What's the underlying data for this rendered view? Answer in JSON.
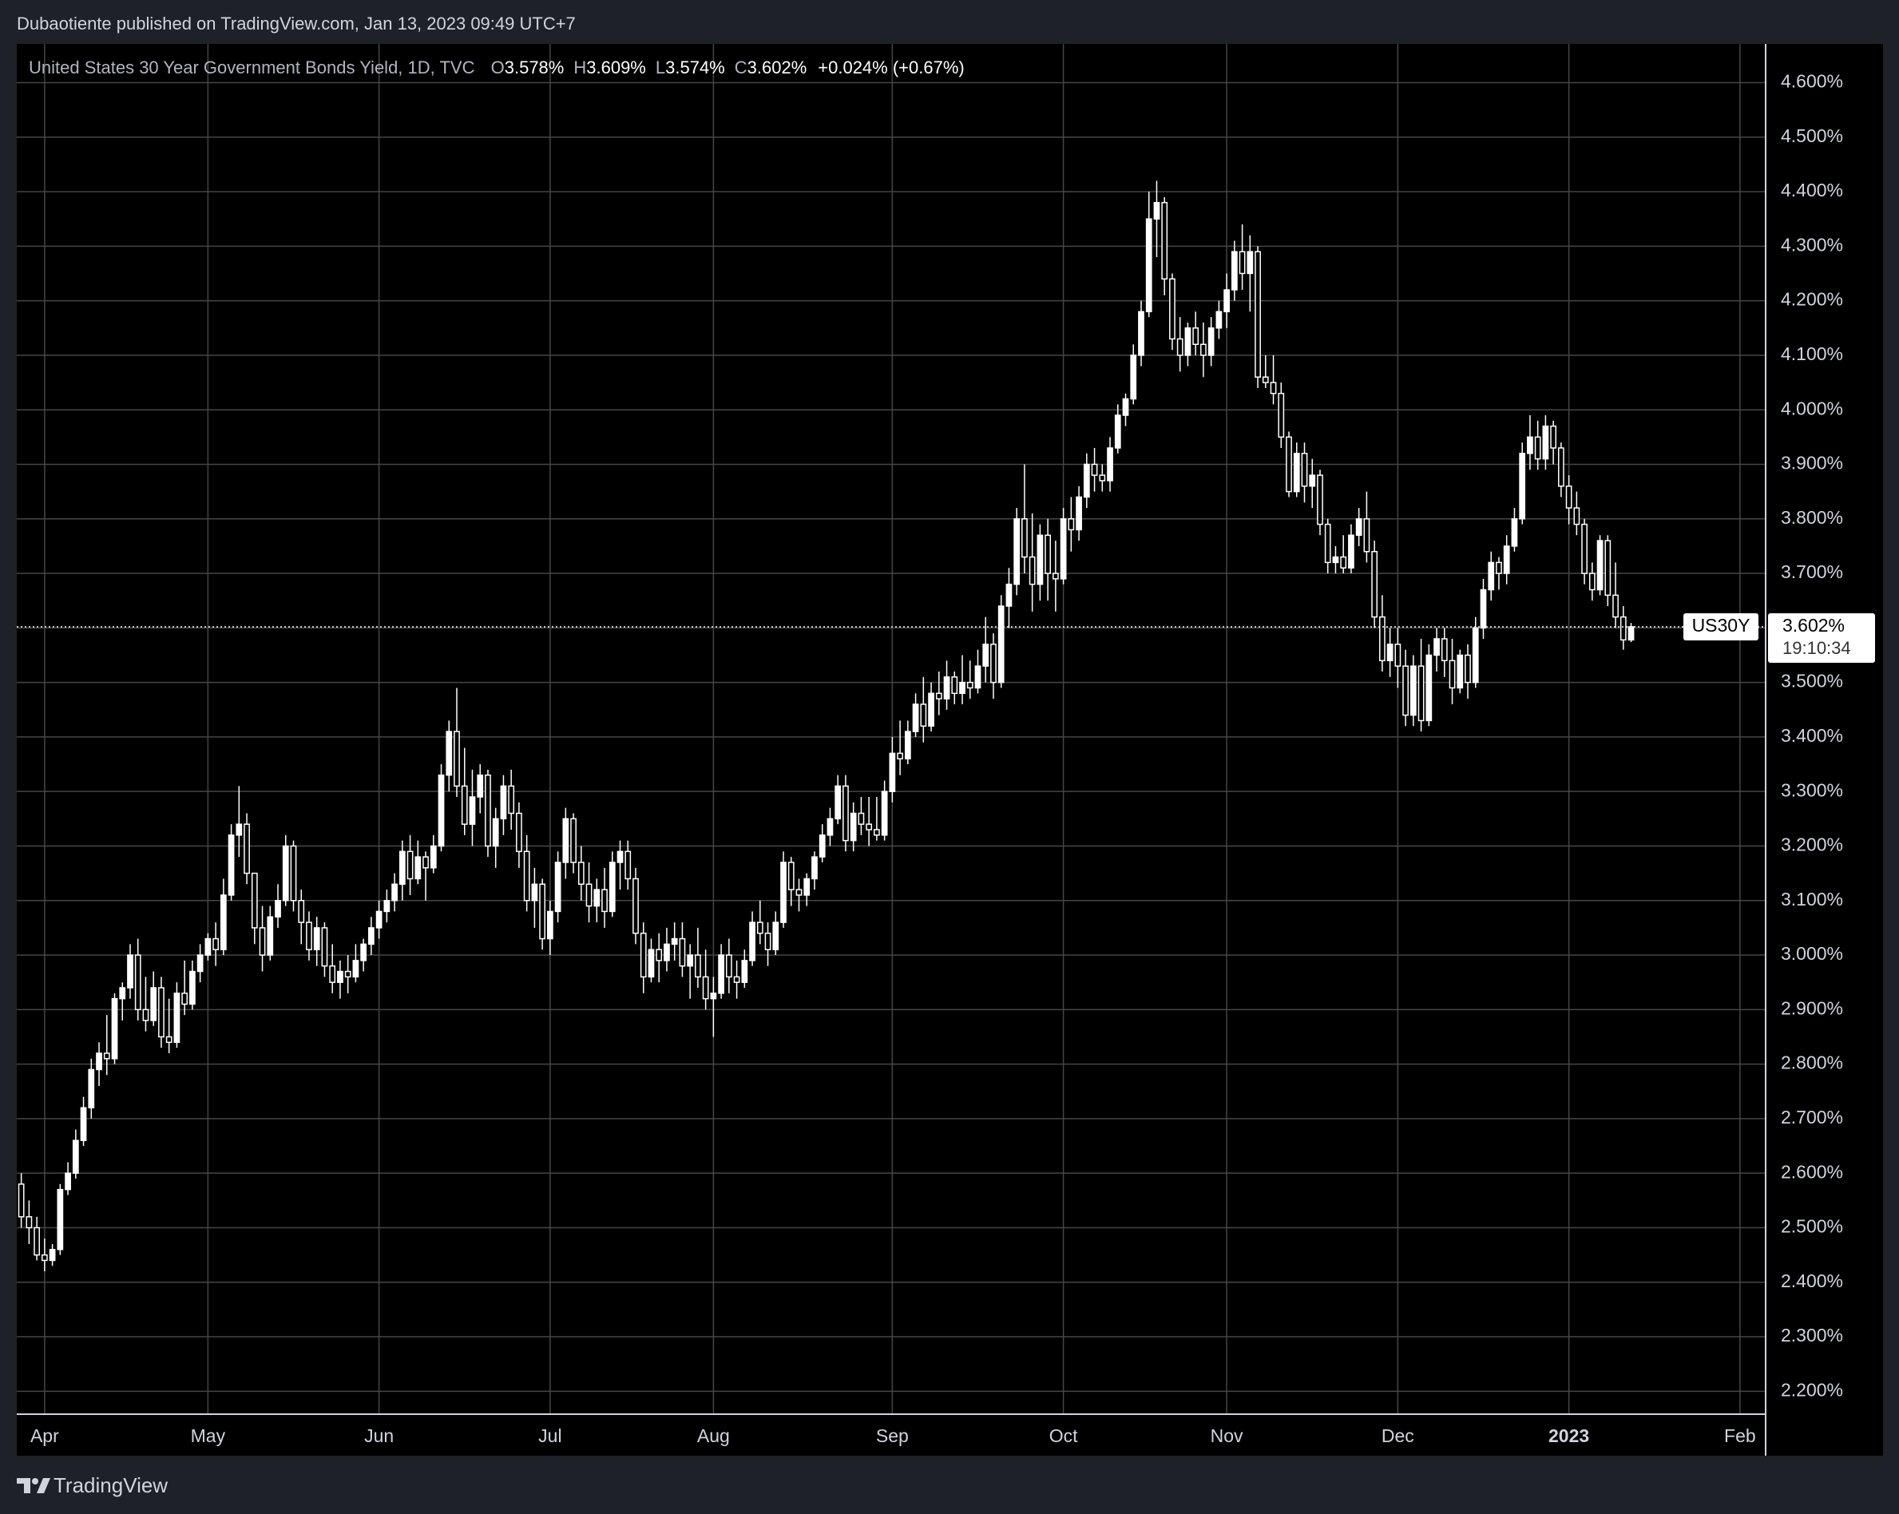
{
  "header": {
    "text": "Dubaotiente published on TradingView.com, Jan 13, 2023 09:49 UTC+7"
  },
  "footer": {
    "brand": "TradingView"
  },
  "chart_data": {
    "type": "candlestick",
    "title": "United States 30 Year Government Bonds Yield, 1D, TVC",
    "ohlc_legend": [
      {
        "key": "O",
        "value": "3.578%"
      },
      {
        "key": "H",
        "value": "3.609%"
      },
      {
        "key": "L",
        "value": "3.574%"
      },
      {
        "key": "C",
        "value": "3.602%"
      }
    ],
    "change": "+0.024% (+0.67%)",
    "symbol": "US30Y",
    "last_price": {
      "value": 3.602,
      "label": "3.602%"
    },
    "countdown": "19:10:34",
    "up_color": "#ffffff",
    "down_color": "#000000",
    "wick_color": "#ffffff",
    "grid": true,
    "xlim": [
      -0.58,
      224.3
    ],
    "xticks": [
      {
        "value": 3,
        "label": "Apr"
      },
      {
        "value": 24,
        "label": "May"
      },
      {
        "value": 46,
        "label": "Jun"
      },
      {
        "value": 68,
        "label": "Jul"
      },
      {
        "value": 89,
        "label": "Aug"
      },
      {
        "value": 112,
        "label": "Sep"
      },
      {
        "value": 134,
        "label": "Oct"
      },
      {
        "value": 155,
        "label": "Nov"
      },
      {
        "value": 177,
        "label": "Dec"
      },
      {
        "value": 199,
        "label": "2023"
      },
      {
        "value": 221,
        "label": "Feb"
      }
    ],
    "ylim": [
      2.158,
      4.671
    ],
    "yticks": [
      {
        "value": 2.2,
        "label": "2.200%"
      },
      {
        "value": 2.3,
        "label": "2.300%"
      },
      {
        "value": 2.4,
        "label": "2.400%"
      },
      {
        "value": 2.5,
        "label": "2.500%"
      },
      {
        "value": 2.6,
        "label": "2.600%"
      },
      {
        "value": 2.7,
        "label": "2.700%"
      },
      {
        "value": 2.8,
        "label": "2.800%"
      },
      {
        "value": 2.9,
        "label": "2.900%"
      },
      {
        "value": 3.0,
        "label": "3.000%"
      },
      {
        "value": 3.1,
        "label": "3.100%"
      },
      {
        "value": 3.2,
        "label": "3.200%"
      },
      {
        "value": 3.3,
        "label": "3.300%"
      },
      {
        "value": 3.4,
        "label": "3.400%"
      },
      {
        "value": 3.5,
        "label": "3.500%"
      },
      {
        "value": 3.6,
        "label": "3.600%"
      },
      {
        "value": 3.7,
        "label": "3.700%"
      },
      {
        "value": 3.8,
        "label": "3.800%"
      },
      {
        "value": 3.9,
        "label": "3.900%"
      },
      {
        "value": 4.0,
        "label": "4.000%"
      },
      {
        "value": 4.1,
        "label": "4.100%"
      },
      {
        "value": 4.2,
        "label": "4.200%"
      },
      {
        "value": 4.3,
        "label": "4.300%"
      },
      {
        "value": 4.4,
        "label": "4.400%"
      },
      {
        "value": 4.5,
        "label": "4.500%"
      },
      {
        "value": 4.6,
        "label": "4.600%"
      }
    ],
    "open": [
      2.58,
      2.52,
      2.5,
      2.45,
      2.44,
      2.46,
      2.57,
      2.6,
      2.66,
      2.72,
      2.79,
      2.82,
      2.81,
      2.92,
      2.94,
      3.0,
      2.9,
      2.88,
      2.94,
      2.85,
      2.84,
      2.93,
      2.91,
      2.97,
      3.0,
      3.03,
      3.01,
      3.11,
      3.22,
      3.24,
      3.15,
      3.05,
      3.0,
      3.07,
      3.1,
      3.2,
      3.1,
      3.06,
      3.01,
      3.05,
      2.98,
      2.95,
      2.97,
      2.96,
      2.99,
      3.02,
      3.05,
      3.08,
      3.1,
      3.13,
      3.19,
      3.14,
      3.18,
      3.16,
      3.2,
      3.33,
      3.41,
      3.31,
      3.24,
      3.29,
      3.33,
      3.2,
      3.25,
      3.31,
      3.26,
      3.19,
      3.1,
      3.13,
      3.03,
      3.08,
      3.17,
      3.25,
      3.17,
      3.13,
      3.09,
      3.12,
      3.08,
      3.17,
      3.19,
      3.14,
      3.04,
      2.96,
      3.01,
      2.99,
      3.02,
      3.03,
      2.98,
      3.0,
      2.96,
      2.92,
      2.93,
      3.0,
      2.96,
      2.95,
      2.99,
      3.06,
      3.04,
      3.01,
      3.06,
      3.17,
      3.12,
      3.11,
      3.14,
      3.18,
      3.22,
      3.25,
      3.31,
      3.21,
      3.26,
      3.24,
      3.23,
      3.22,
      3.3,
      3.37,
      3.36,
      3.41,
      3.46,
      3.42,
      3.48,
      3.47,
      3.51,
      3.48,
      3.5,
      3.49,
      3.53,
      3.57,
      3.5,
      3.64,
      3.68,
      3.8,
      3.73,
      3.68,
      3.77,
      3.7,
      3.69,
      3.8,
      3.78,
      3.84,
      3.9,
      3.88,
      3.87,
      3.93,
      3.99,
      4.02,
      4.1,
      4.18,
      4.35,
      4.38,
      4.24,
      4.13,
      4.1,
      4.15,
      4.12,
      4.1,
      4.15,
      4.18,
      4.22,
      4.29,
      4.25,
      4.29,
      4.06,
      4.05,
      4.03,
      3.95,
      3.85,
      3.92,
      3.86,
      3.88,
      3.79,
      3.72,
      3.73,
      3.71,
      3.77,
      3.8,
      3.74,
      3.62,
      3.54,
      3.57,
      3.53,
      3.44,
      3.53,
      3.43,
      3.55,
      3.58,
      3.54,
      3.49,
      3.55,
      3.5,
      3.6,
      3.67,
      3.72,
      3.7,
      3.75,
      3.8,
      3.92,
      3.95,
      3.91,
      3.97,
      3.93,
      3.86,
      3.82,
      3.79,
      3.7,
      3.67,
      3.76,
      3.66,
      3.62,
      3.578
    ],
    "high": [
      2.6,
      2.55,
      2.52,
      2.48,
      2.47,
      2.58,
      2.62,
      2.68,
      2.74,
      2.81,
      2.84,
      2.89,
      2.93,
      2.95,
      3.02,
      3.03,
      2.96,
      2.97,
      2.96,
      2.92,
      2.95,
      2.99,
      2.99,
      3.02,
      3.04,
      3.06,
      3.14,
      3.24,
      3.31,
      3.26,
      3.15,
      3.09,
      3.09,
      3.13,
      3.22,
      3.21,
      3.12,
      3.08,
      3.07,
      3.06,
      3.02,
      2.99,
      3.0,
      3.02,
      3.03,
      3.07,
      3.1,
      3.12,
      3.15,
      3.21,
      3.22,
      3.21,
      3.19,
      3.22,
      3.35,
      3.43,
      3.49,
      3.38,
      3.34,
      3.35,
      3.34,
      3.27,
      3.33,
      3.34,
      3.28,
      3.22,
      3.16,
      3.14,
      3.1,
      3.19,
      3.27,
      3.26,
      3.2,
      3.17,
      3.14,
      3.16,
      3.19,
      3.21,
      3.21,
      3.16,
      3.06,
      3.03,
      3.04,
      3.05,
      3.06,
      3.06,
      3.02,
      3.05,
      3.01,
      2.96,
      3.02,
      3.03,
      2.99,
      3.01,
      3.08,
      3.1,
      3.06,
      3.08,
      3.19,
      3.18,
      3.14,
      3.15,
      3.19,
      3.24,
      3.27,
      3.33,
      3.33,
      3.28,
      3.29,
      3.29,
      3.29,
      3.32,
      3.4,
      3.43,
      3.43,
      3.48,
      3.51,
      3.5,
      3.52,
      3.54,
      3.52,
      3.55,
      3.54,
      3.56,
      3.62,
      3.59,
      3.66,
      3.71,
      3.82,
      3.9,
      3.81,
      3.79,
      3.8,
      3.76,
      3.82,
      3.84,
      3.86,
      3.92,
      3.93,
      3.9,
      3.95,
      4.01,
      4.03,
      4.12,
      4.2,
      4.4,
      4.42,
      4.39,
      4.25,
      4.17,
      4.16,
      4.18,
      4.16,
      4.17,
      4.2,
      4.25,
      4.31,
      4.34,
      4.32,
      4.3,
      4.1,
      4.1,
      4.05,
      3.96,
      3.94,
      3.94,
      3.91,
      3.89,
      3.8,
      3.75,
      3.77,
      3.79,
      3.82,
      3.85,
      3.76,
      3.66,
      3.6,
      3.6,
      3.56,
      3.55,
      3.58,
      3.57,
      3.6,
      3.6,
      3.58,
      3.56,
      3.57,
      3.62,
      3.69,
      3.74,
      3.73,
      3.77,
      3.82,
      3.94,
      3.99,
      3.98,
      3.99,
      3.98,
      3.94,
      3.88,
      3.85,
      3.8,
      3.72,
      3.77,
      3.77,
      3.72,
      3.64,
      3.609
    ],
    "low": [
      2.5,
      2.47,
      2.44,
      2.42,
      2.43,
      2.45,
      2.56,
      2.59,
      2.65,
      2.7,
      2.76,
      2.78,
      2.8,
      2.88,
      2.92,
      2.88,
      2.86,
      2.87,
      2.83,
      2.82,
      2.83,
      2.89,
      2.9,
      2.95,
      2.99,
      2.98,
      3.0,
      3.1,
      3.18,
      3.13,
      3.02,
      2.97,
      2.99,
      3.05,
      3.09,
      3.08,
      3.02,
      2.99,
      2.98,
      2.96,
      2.93,
      2.92,
      2.93,
      2.95,
      2.97,
      3.0,
      3.03,
      3.06,
      3.08,
      3.1,
      3.11,
      3.13,
      3.1,
      3.15,
      3.19,
      3.3,
      3.29,
      3.22,
      3.2,
      3.26,
      3.18,
      3.16,
      3.22,
      3.23,
      3.16,
      3.08,
      3.05,
      3.01,
      3.0,
      3.06,
      3.14,
      3.15,
      3.1,
      3.06,
      3.06,
      3.05,
      3.07,
      3.12,
      3.12,
      3.02,
      2.93,
      2.95,
      2.95,
      2.97,
      2.99,
      2.96,
      2.92,
      2.94,
      2.9,
      2.85,
      2.92,
      2.93,
      2.92,
      2.94,
      2.98,
      3.02,
      2.98,
      3.0,
      3.05,
      3.09,
      3.08,
      3.09,
      3.12,
      3.17,
      3.2,
      3.24,
      3.19,
      3.19,
      3.22,
      3.2,
      3.21,
      3.21,
      3.28,
      3.33,
      3.35,
      3.4,
      3.39,
      3.41,
      3.44,
      3.45,
      3.46,
      3.46,
      3.47,
      3.48,
      3.5,
      3.47,
      3.49,
      3.6,
      3.66,
      3.7,
      3.63,
      3.65,
      3.65,
      3.63,
      3.68,
      3.74,
      3.76,
      3.82,
      3.85,
      3.85,
      3.85,
      3.92,
      3.97,
      4.01,
      4.08,
      4.17,
      4.28,
      4.21,
      4.11,
      4.07,
      4.08,
      4.1,
      4.06,
      4.08,
      4.13,
      4.15,
      4.2,
      4.22,
      4.18,
      4.04,
      4.04,
      4.01,
      3.93,
      3.84,
      3.84,
      3.83,
      3.82,
      3.77,
      3.7,
      3.7,
      3.7,
      3.7,
      3.75,
      3.72,
      3.6,
      3.52,
      3.51,
      3.49,
      3.42,
      3.42,
      3.41,
      3.42,
      3.52,
      3.51,
      3.46,
      3.48,
      3.47,
      3.49,
      3.58,
      3.65,
      3.67,
      3.68,
      3.74,
      3.79,
      3.89,
      3.89,
      3.89,
      3.9,
      3.84,
      3.79,
      3.77,
      3.68,
      3.65,
      3.66,
      3.64,
      3.6,
      3.56,
      3.574
    ],
    "close": [
      2.52,
      2.5,
      2.45,
      2.44,
      2.46,
      2.57,
      2.6,
      2.66,
      2.72,
      2.79,
      2.82,
      2.81,
      2.92,
      2.94,
      3.0,
      2.9,
      2.88,
      2.94,
      2.85,
      2.84,
      2.93,
      2.91,
      2.97,
      3.0,
      3.03,
      3.01,
      3.11,
      3.22,
      3.24,
      3.15,
      3.05,
      3.0,
      3.07,
      3.1,
      3.2,
      3.1,
      3.06,
      3.01,
      3.05,
      2.98,
      2.95,
      2.97,
      2.96,
      2.99,
      3.02,
      3.05,
      3.08,
      3.1,
      3.13,
      3.19,
      3.14,
      3.18,
      3.16,
      3.2,
      3.33,
      3.41,
      3.31,
      3.24,
      3.29,
      3.33,
      3.2,
      3.25,
      3.31,
      3.26,
      3.19,
      3.1,
      3.13,
      3.03,
      3.08,
      3.17,
      3.25,
      3.17,
      3.13,
      3.09,
      3.12,
      3.08,
      3.17,
      3.19,
      3.14,
      3.04,
      2.96,
      3.01,
      2.99,
      3.02,
      3.03,
      2.98,
      3.0,
      2.96,
      2.92,
      2.93,
      3.0,
      2.96,
      2.95,
      2.99,
      3.06,
      3.04,
      3.01,
      3.06,
      3.17,
      3.12,
      3.11,
      3.14,
      3.18,
      3.22,
      3.25,
      3.31,
      3.21,
      3.26,
      3.24,
      3.23,
      3.22,
      3.3,
      3.37,
      3.36,
      3.41,
      3.46,
      3.42,
      3.48,
      3.47,
      3.51,
      3.48,
      3.5,
      3.49,
      3.53,
      3.57,
      3.5,
      3.64,
      3.68,
      3.8,
      3.73,
      3.68,
      3.77,
      3.7,
      3.69,
      3.8,
      3.78,
      3.84,
      3.9,
      3.88,
      3.87,
      3.93,
      3.99,
      4.02,
      4.1,
      4.18,
      4.35,
      4.38,
      4.24,
      4.13,
      4.1,
      4.15,
      4.12,
      4.1,
      4.15,
      4.18,
      4.22,
      4.29,
      4.25,
      4.29,
      4.06,
      4.05,
      4.03,
      3.95,
      3.85,
      3.92,
      3.86,
      3.88,
      3.79,
      3.72,
      3.73,
      3.71,
      3.77,
      3.8,
      3.74,
      3.62,
      3.54,
      3.57,
      3.53,
      3.44,
      3.53,
      3.43,
      3.55,
      3.58,
      3.54,
      3.49,
      3.55,
      3.5,
      3.6,
      3.67,
      3.72,
      3.7,
      3.75,
      3.8,
      3.92,
      3.95,
      3.91,
      3.97,
      3.93,
      3.86,
      3.82,
      3.79,
      3.7,
      3.67,
      3.76,
      3.66,
      3.62,
      3.578,
      3.602
    ]
  }
}
